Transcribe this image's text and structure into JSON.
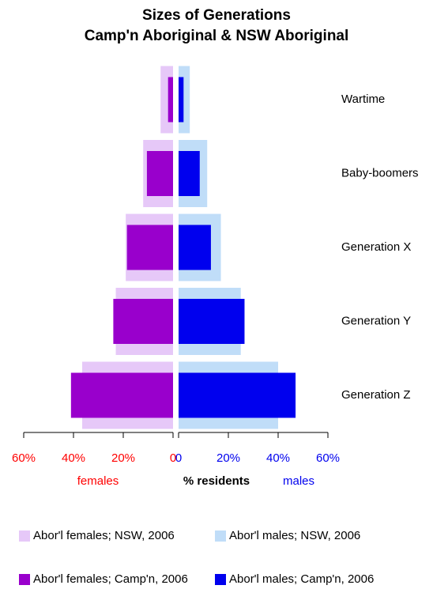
{
  "chart_data": {
    "type": "pyramid",
    "title": "Sizes of Generations",
    "subtitle": "Camp'n Aboriginal & NSW Aboriginal",
    "categories": [
      "Wartime",
      "Baby-boomers",
      "Generation X",
      "Generation Y",
      "Generation Z"
    ],
    "series": [
      {
        "name": "Abor'l females; NSW, 2006",
        "color": "#e6c8f8",
        "side": "left",
        "values": [
          5,
          12,
          19,
          23,
          36.5
        ]
      },
      {
        "name": "Abor'l males; NSW, 2006",
        "color": "#c0ddf8",
        "side": "right",
        "values": [
          4.5,
          11.5,
          17,
          25,
          40
        ]
      },
      {
        "name": "Abor'l females; Camp'n, 2006",
        "color": "#9900cc",
        "side": "left",
        "values": [
          2,
          10.5,
          18.5,
          24,
          41
        ]
      },
      {
        "name": "Abor'l males; Camp'n, 2006",
        "color": "#0000ee",
        "side": "right",
        "values": [
          2,
          8.5,
          13,
          26.5,
          47
        ]
      }
    ],
    "xlim": [
      0,
      60
    ],
    "xticks_left": [
      {
        "value": 60,
        "label": "60%"
      },
      {
        "value": 40,
        "label": "40%"
      },
      {
        "value": 20,
        "label": "20%"
      },
      0
    ],
    "xticks_right": [
      0,
      {
        "value": 20,
        "label": "20%"
      },
      {
        "value": 40,
        "label": "40%"
      },
      {
        "value": 60,
        "label": "60%"
      }
    ],
    "left_label": "females",
    "x_label": "% residents",
    "right_label": "males",
    "left_color": "#ff0000",
    "right_color": "#0000ee"
  }
}
